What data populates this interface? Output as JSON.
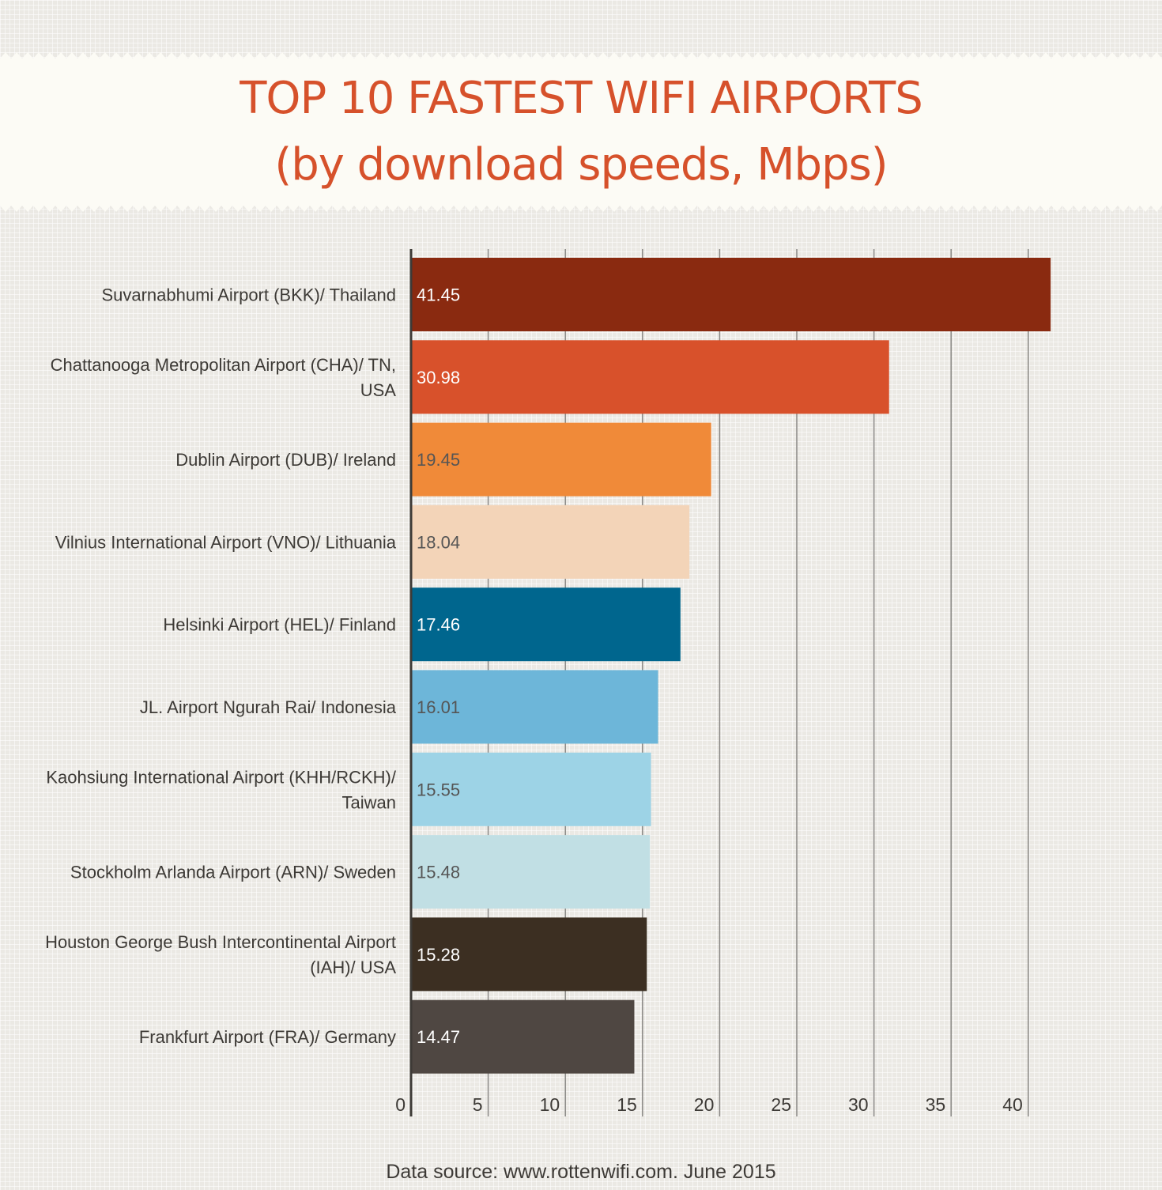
{
  "title": {
    "line1": "TOP 10 FASTEST WIFI AIRPORTS",
    "line2": "(by download speeds, Mbps)"
  },
  "source": "Data source: www.rottenwifi.com. June 2015",
  "chart_data": {
    "type": "bar",
    "orientation": "horizontal",
    "title": "TOP 10 FASTEST WIFI AIRPORTS (by download speeds, Mbps)",
    "categories": [
      [
        "Suvarnabhumi Airport (BKK)/ Thailand"
      ],
      [
        "Chattanooga Metropolitan Airport (CHA)/ TN,",
        "USA"
      ],
      [
        "Dublin Airport (DUB)/ Ireland"
      ],
      [
        "Vilnius International Airport (VNO)/ Lithuania"
      ],
      [
        "Helsinki Airport (HEL)/ Finland"
      ],
      [
        "JL. Airport Ngurah Rai/ Indonesia"
      ],
      [
        "Kaohsiung International Airport (KHH/RCKH)/",
        "Taiwan"
      ],
      [
        "Stockholm Arlanda Airport (ARN)/ Sweden"
      ],
      [
        "Houston George Bush Intercontinental Airport",
        "(IAH)/ USA"
      ],
      [
        "Frankfurt Airport (FRA)/ Germany"
      ]
    ],
    "values": [
      41.45,
      30.98,
      19.45,
      18.04,
      17.46,
      16.01,
      15.55,
      15.48,
      15.28,
      14.47
    ],
    "value_labels": [
      "41.45",
      "30.98",
      "19.45",
      "18.04",
      "17.46",
      "16.01",
      "15.55",
      "15.48",
      "15.28",
      "14.47"
    ],
    "colors": [
      "#8a2a10",
      "#d8512b",
      "#f08a39",
      "#f3d4b8",
      "#00668e",
      "#6db6d9",
      "#9dd3e6",
      "#c1dfe4",
      "#3c2f22",
      "#4f4742"
    ],
    "label_colors": [
      "#ffffff",
      "#ffffff",
      "#555555",
      "#555555",
      "#ffffff",
      "#555555",
      "#555555",
      "#555555",
      "#ffffff",
      "#ffffff"
    ],
    "xlim": [
      0,
      42
    ],
    "xticks": [
      0,
      5,
      10,
      15,
      20,
      25,
      30,
      35,
      40
    ],
    "xtick_labels": [
      "0",
      "5",
      "10",
      "15",
      "20",
      "25",
      "30",
      "35",
      "40"
    ],
    "grid": true,
    "legend": "none"
  },
  "colors": {
    "title": "#d6512b",
    "banner": "#fcfbf5",
    "text": "#3d3a36",
    "grid": "#8a8885",
    "axis": "#3d3a36"
  }
}
